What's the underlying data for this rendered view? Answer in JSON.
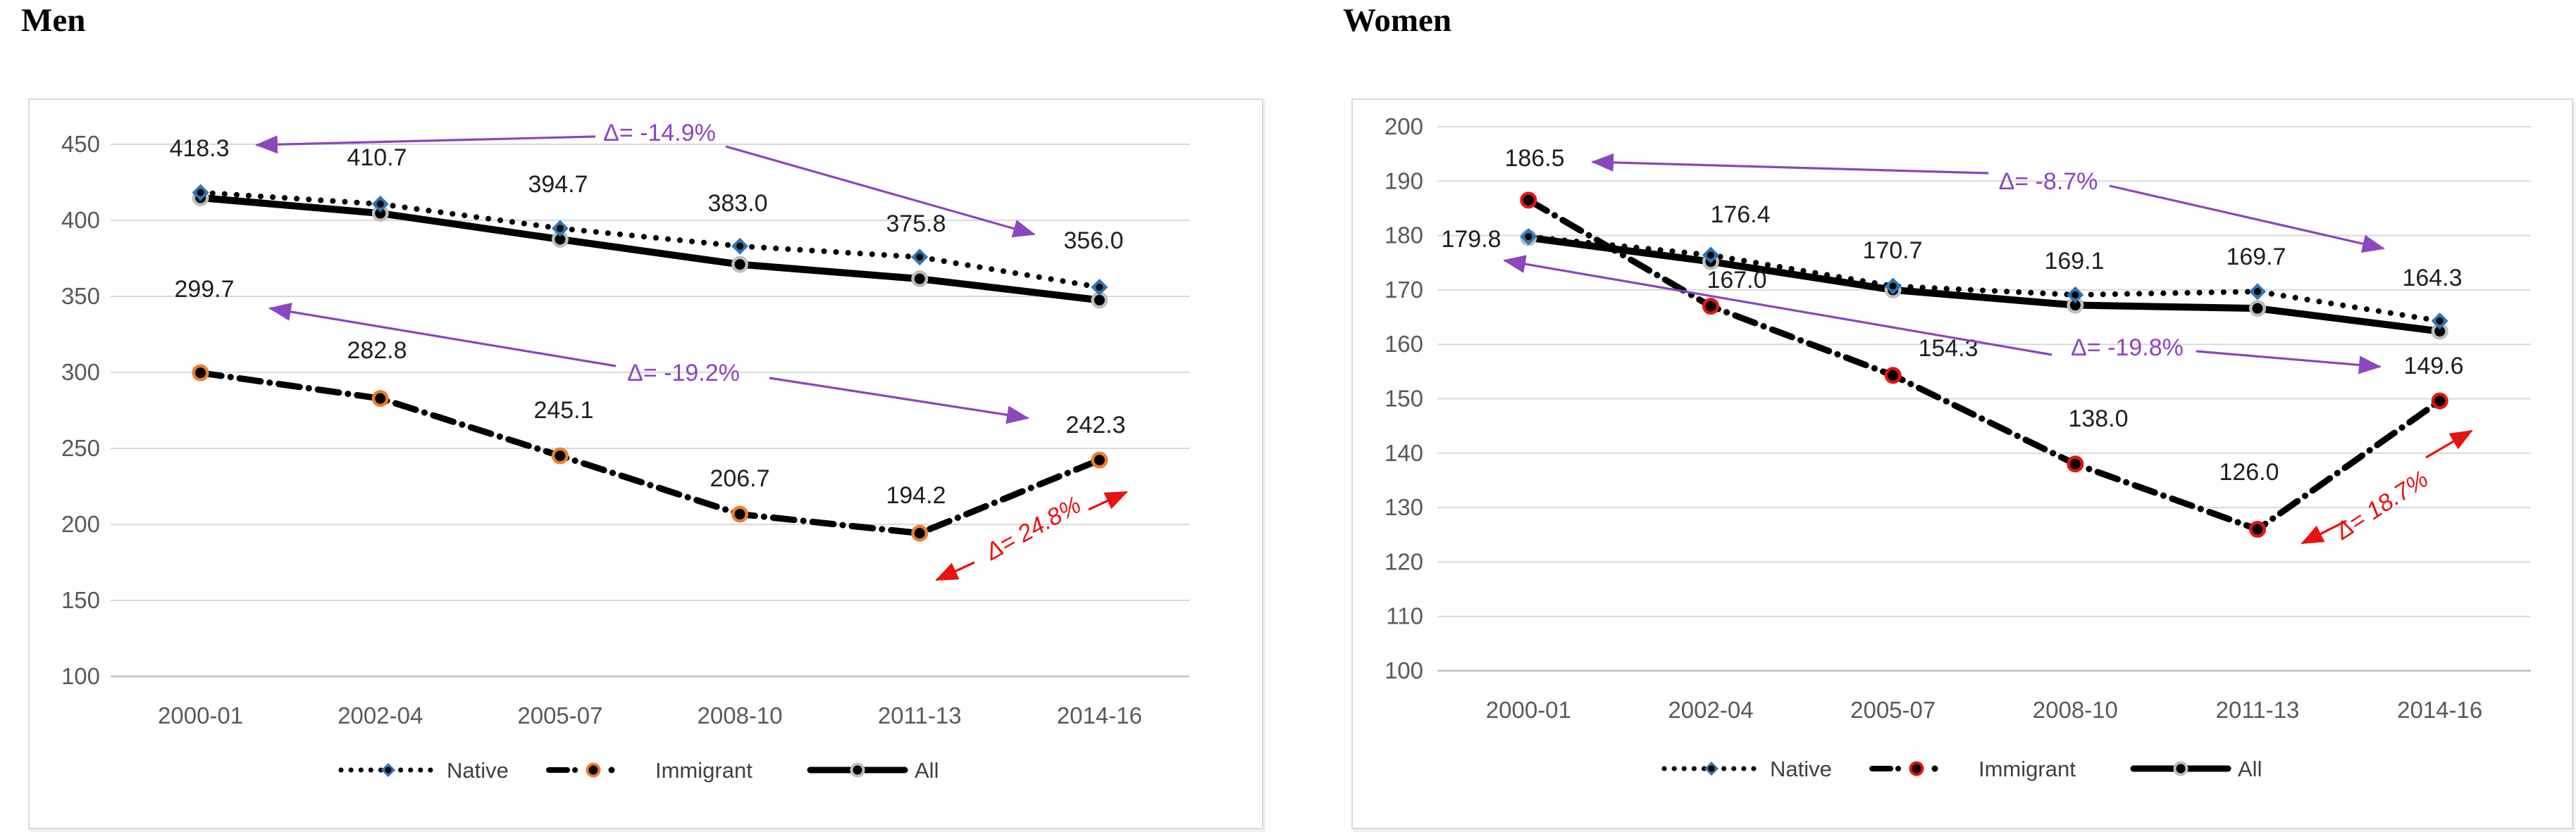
{
  "figure": {
    "background": "#ffffff",
    "grid_color": "#d9d9d9",
    "axis_line_color": "#bfbfbf",
    "tick_color": "#595959",
    "purple": "#8c46be",
    "red": "#e81212"
  },
  "chart_data": [
    {
      "type": "line",
      "title": "Men",
      "categories": [
        "2000-01",
        "2002-04",
        "2005-07",
        "2008-10",
        "2011-13",
        "2014-16"
      ],
      "ylim": [
        100,
        450
      ],
      "ytick_step": 50,
      "yticks": [
        "450",
        "400",
        "350",
        "300",
        "250",
        "200",
        "150",
        "100"
      ],
      "grid": true,
      "legend_position": "bottom",
      "series": [
        {
          "name": "Native",
          "line": "dotted",
          "marker": "diamond",
          "marker_color": "#2e75b6",
          "color": "#000000",
          "values": [
            418.3,
            410.7,
            394.7,
            383.0,
            375.8,
            356.0
          ],
          "labels": [
            "418.3",
            "410.7",
            "394.7",
            "383.0",
            "375.8",
            "356.0"
          ],
          "labels_shown": true
        },
        {
          "name": "Immigrant",
          "line": "dash-dot",
          "marker": "circle",
          "marker_color": "#ed7d31",
          "color": "#000000",
          "values": [
            299.7,
            282.8,
            245.1,
            206.7,
            194.2,
            242.3
          ],
          "labels": [
            "299.7",
            "282.8",
            "245.1",
            "206.7",
            "194.2",
            "242.3"
          ],
          "labels_shown": true
        },
        {
          "name": "All",
          "line": "solid",
          "marker": "circle",
          "marker_color": "#bdbdbd",
          "color": "#000000",
          "values": [
            414.8,
            404.6,
            387.5,
            371.0,
            361.5,
            347.5
          ],
          "labels": [],
          "labels_shown": false,
          "values_estimated": true
        }
      ],
      "annotations": [
        {
          "text": "Δ= -14.9%",
          "color": "#8c46be",
          "italic": false,
          "rotate": 0,
          "text_xy": [
            894,
            46
          ],
          "arrows": [
            {
              "from": [
                803,
                52
              ],
              "to": [
                322,
                64
              ]
            },
            {
              "from": [
                988,
                66
              ],
              "to": [
                1426,
                191
              ]
            }
          ]
        },
        {
          "text": "Δ= -19.2%",
          "color": "#8c46be",
          "italic": false,
          "rotate": 0,
          "text_xy": [
            928,
            387
          ],
          "arrows": [
            {
              "from": [
                832,
                378
              ],
              "to": [
                341,
                296
              ]
            },
            {
              "from": [
                1050,
                395
              ],
              "to": [
                1417,
                452
              ]
            }
          ]
        },
        {
          "text": "Δ= 24.8%",
          "color": "#e81212",
          "italic": true,
          "rotate": -29,
          "text_xy": [
            1424,
            608
          ],
          "arrows": [
            {
              "from": [
                1341,
                657
              ],
              "to": [
                1287,
                682
              ]
            },
            {
              "from": [
                1503,
                582
              ],
              "to": [
                1557,
                557
              ]
            }
          ]
        }
      ]
    },
    {
      "type": "line",
      "title": "Women",
      "categories": [
        "2000-01",
        "2002-04",
        "2005-07",
        "2008-10",
        "2011-13",
        "2014-16"
      ],
      "ylim": [
        100,
        200
      ],
      "ytick_step": 10,
      "yticks": [
        "200",
        "190",
        "180",
        "170",
        "160",
        "150",
        "140",
        "130",
        "120",
        "110",
        "100"
      ],
      "grid": true,
      "legend_position": "bottom",
      "series": [
        {
          "name": "Native",
          "line": "dotted",
          "marker": "diamond",
          "marker_color": "#2e75b6",
          "color": "#000000",
          "values": [
            179.8,
            176.4,
            170.7,
            169.1,
            169.7,
            164.3
          ],
          "labels": [
            "179.8",
            "176.4",
            "170.7",
            "169.1",
            "169.7",
            "164.3"
          ],
          "labels_shown": true
        },
        {
          "name": "Immigrant",
          "line": "dash-dot",
          "marker": "circle",
          "marker_color": "#e81212",
          "color": "#000000",
          "values": [
            186.5,
            167.0,
            154.3,
            138.0,
            126.0,
            149.6
          ],
          "labels": [
            "186.5",
            "167.0",
            "154.3",
            "138.0",
            "126.0",
            "149.6"
          ],
          "labels_shown": true
        },
        {
          "name": "All",
          "line": "solid",
          "marker": "circle",
          "marker_color": "#bdbdbd",
          "color": "#000000",
          "values": [
            179.6,
            175.2,
            170.0,
            167.2,
            166.6,
            162.4
          ],
          "labels": [],
          "labels_shown": false,
          "values_estimated": true
        }
      ],
      "annotations": [
        {
          "text": "Δ= -8.7%",
          "color": "#8c46be",
          "italic": false,
          "rotate": 0,
          "text_xy": [
            987,
            115
          ],
          "arrows": [
            {
              "from": [
                902,
                104
              ],
              "to": [
                340,
                88
              ]
            },
            {
              "from": [
                1074,
                122
              ],
              "to": [
                1463,
                211
              ]
            }
          ]
        },
        {
          "text": "Δ= -19.8%",
          "color": "#8c46be",
          "italic": false,
          "rotate": 0,
          "text_xy": [
            1099,
            351
          ],
          "arrows": [
            {
              "from": [
                992,
                362
              ],
              "to": [
                215,
                228
              ]
            },
            {
              "from": [
                1197,
                357
              ],
              "to": [
                1458,
                379
              ]
            }
          ]
        },
        {
          "text": "Δ= 18.7%",
          "color": "#e81212",
          "italic": true,
          "rotate": -33,
          "text_xy": [
            1460,
            575
          ],
          "arrows": [
            {
              "from": [
                1410,
                598
              ],
              "to": [
                1347,
                630
              ]
            },
            {
              "from": [
                1523,
                508
              ],
              "to": [
                1588,
                470
              ]
            }
          ]
        }
      ]
    }
  ]
}
